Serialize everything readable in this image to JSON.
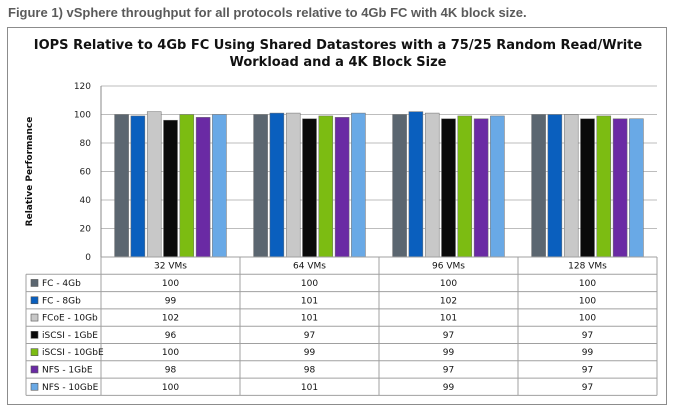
{
  "caption": "Figure 1) vSphere throughput for all protocols relative to 4Gb FC with 4K block size.",
  "chart_data": {
    "type": "bar",
    "title_line1": "IOPS Relative to 4Gb FC Using Shared Datastores with a 75/25 Random Read/Write",
    "title_line2": "Workload and a 4K Block Size",
    "ylabel": "Relative Performance",
    "xlabel": "",
    "ylim": [
      0,
      120
    ],
    "yticks": [
      0,
      20,
      40,
      60,
      80,
      100,
      120
    ],
    "grid": true,
    "categories": [
      "32 VMs",
      "64 VMs",
      "96 VMs",
      "128 VMs"
    ],
    "series": [
      {
        "name": "FC - 4Gb",
        "color": "#5b6670",
        "values": [
          100,
          100,
          100,
          100
        ]
      },
      {
        "name": "FC - 8Gb",
        "color": "#0a5fbe",
        "values": [
          99,
          101,
          102,
          100
        ]
      },
      {
        "name": "FCoE - 10Gb",
        "color": "#c8c8c8",
        "values": [
          102,
          101,
          101,
          100
        ]
      },
      {
        "name": "iSCSI - 1GbE",
        "color": "#0a0a0a",
        "values": [
          96,
          97,
          97,
          97
        ]
      },
      {
        "name": "iSCSI - 10GbE",
        "color": "#7cbc12",
        "values": [
          100,
          99,
          99,
          99
        ]
      },
      {
        "name": "NFS - 1GbE",
        "color": "#6a2aa4",
        "values": [
          98,
          98,
          97,
          97
        ]
      },
      {
        "name": "NFS - 10GbE",
        "color": "#69a9e6",
        "values": [
          100,
          101,
          99,
          97
        ]
      }
    ]
  }
}
